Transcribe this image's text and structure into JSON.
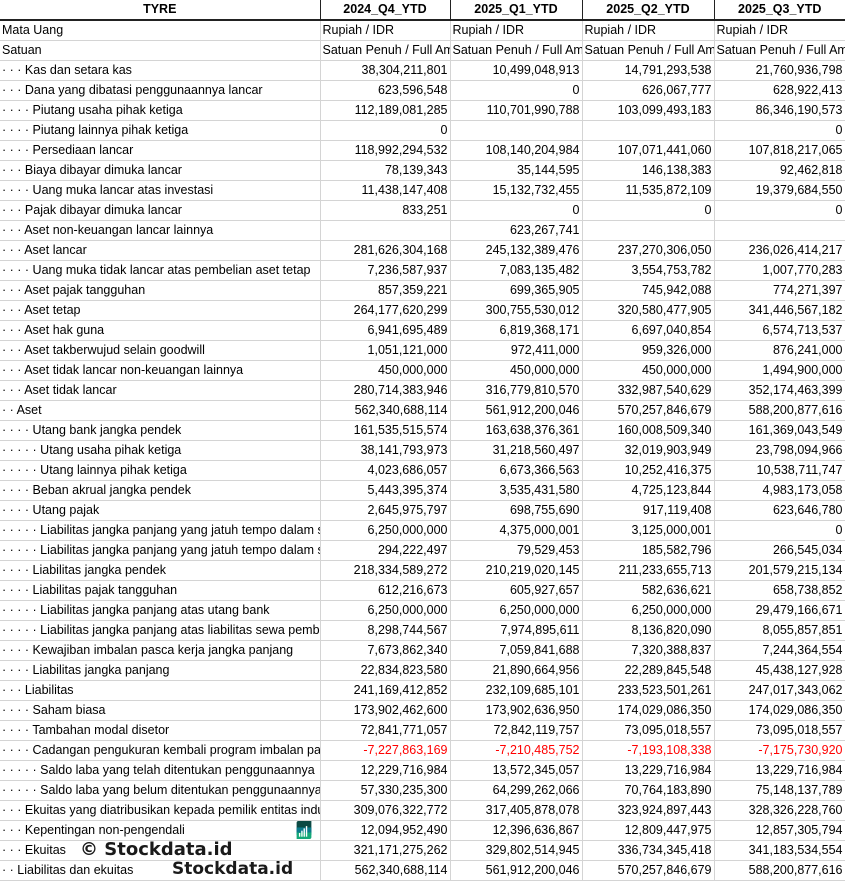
{
  "header": {
    "title": "TYRE",
    "columns": [
      "2024_Q4_YTD",
      "2025_Q1_YTD",
      "2025_Q2_YTD",
      "2025_Q3_YTD"
    ]
  },
  "meta_rows": [
    {
      "label": "Mata Uang",
      "values": [
        "Rupiah / IDR",
        "Rupiah / IDR",
        "Rupiah / IDR",
        "Rupiah / IDR"
      ]
    },
    {
      "label": "Satuan",
      "values": [
        "Satuan Penuh / Full Amount",
        "Satuan Penuh / Full Amount",
        "Satuan Penuh / Full Amount",
        "Satuan Penuh / Full Amount"
      ]
    }
  ],
  "rows": [
    {
      "label": "· · · Kas dan setara kas",
      "values": [
        "38,304,211,801",
        "10,499,048,913",
        "14,791,293,538",
        "21,760,936,798"
      ]
    },
    {
      "label": "· · · Dana yang dibatasi penggunaannya lancar",
      "values": [
        "623,596,548",
        "0",
        "626,067,777",
        "628,922,413"
      ]
    },
    {
      "label": "· · · · Piutang usaha pihak ketiga",
      "values": [
        "112,189,081,285",
        "110,701,990,788",
        "103,099,493,183",
        "86,346,190,573"
      ]
    },
    {
      "label": "· · · · Piutang lainnya pihak ketiga",
      "values": [
        "0",
        "",
        "",
        "0"
      ]
    },
    {
      "label": "· · · · Persediaan lancar",
      "values": [
        "118,992,294,532",
        "108,140,204,984",
        "107,071,441,060",
        "107,818,217,065"
      ]
    },
    {
      "label": "· · · Biaya dibayar dimuka lancar",
      "values": [
        "78,139,343",
        "35,144,595",
        "146,138,383",
        "92,462,818"
      ]
    },
    {
      "label": "· · · · Uang muka lancar atas investasi",
      "values": [
        "11,438,147,408",
        "15,132,732,455",
        "11,535,872,109",
        "19,379,684,550"
      ]
    },
    {
      "label": "· · · Pajak dibayar dimuka lancar",
      "values": [
        "833,251",
        "0",
        "0",
        "0"
      ]
    },
    {
      "label": "· · · Aset non-keuangan lancar lainnya",
      "values": [
        "",
        "623,267,741",
        "",
        ""
      ]
    },
    {
      "label": "· · · Aset lancar",
      "values": [
        "281,626,304,168",
        "245,132,389,476",
        "237,270,306,050",
        "236,026,414,217"
      ]
    },
    {
      "label": "· · · · Uang muka tidak lancar atas pembelian aset tetap",
      "values": [
        "7,236,587,937",
        "7,083,135,482",
        "3,554,753,782",
        "1,007,770,283"
      ]
    },
    {
      "label": "· · · Aset pajak tangguhan",
      "values": [
        "857,359,221",
        "699,365,905",
        "745,942,088",
        "774,271,397"
      ]
    },
    {
      "label": "· · · Aset tetap",
      "values": [
        "264,177,620,299",
        "300,755,530,012",
        "320,580,477,905",
        "341,446,567,182"
      ]
    },
    {
      "label": "· · · Aset hak guna",
      "values": [
        "6,941,695,489",
        "6,819,368,171",
        "6,697,040,854",
        "6,574,713,537"
      ]
    },
    {
      "label": "· · · Aset takberwujud selain goodwill",
      "values": [
        "1,051,121,000",
        "972,411,000",
        "959,326,000",
        "876,241,000"
      ]
    },
    {
      "label": "· · · Aset tidak lancar non-keuangan lainnya",
      "values": [
        "450,000,000",
        "450,000,000",
        "450,000,000",
        "1,494,900,000"
      ]
    },
    {
      "label": "· · · Aset tidak lancar",
      "values": [
        "280,714,383,946",
        "316,779,810,570",
        "332,987,540,629",
        "352,174,463,399"
      ]
    },
    {
      "label": "· · Aset",
      "values": [
        "562,340,688,114",
        "561,912,200,046",
        "570,257,846,679",
        "588,200,877,616"
      ]
    },
    {
      "label": "· · · · Utang bank jangka pendek",
      "values": [
        "161,535,515,574",
        "163,638,376,361",
        "160,008,509,340",
        "161,369,043,549"
      ]
    },
    {
      "label": "· · · · · Utang usaha pihak ketiga",
      "values": [
        "38,141,793,973",
        "31,218,560,497",
        "32,019,903,949",
        "23,798,094,966"
      ]
    },
    {
      "label": "· · · · · Utang lainnya pihak ketiga",
      "values": [
        "4,023,686,057",
        "6,673,366,563",
        "10,252,416,375",
        "10,538,711,747"
      ]
    },
    {
      "label": "· · · · Beban akrual jangka pendek",
      "values": [
        "5,443,395,374",
        "3,535,431,580",
        "4,725,123,844",
        "4,983,173,058"
      ]
    },
    {
      "label": "· · · · Utang pajak",
      "values": [
        "2,645,975,797",
        "698,755,690",
        "917,119,408",
        "623,646,780"
      ]
    },
    {
      "label": "· · · · · Liabilitas jangka panjang yang jatuh tempo dalam satu tahun",
      "values": [
        "6,250,000,000",
        "4,375,000,001",
        "3,125,000,001",
        "0"
      ]
    },
    {
      "label": "· · · · · Liabilitas jangka panjang yang jatuh tempo dalam satu tahun",
      "values": [
        "294,222,497",
        "79,529,453",
        "185,582,796",
        "266,545,034"
      ]
    },
    {
      "label": "· · · · Liabilitas jangka pendek",
      "values": [
        "218,334,589,272",
        "210,219,020,145",
        "211,233,655,713",
        "201,579,215,134"
      ]
    },
    {
      "label": "· · · · Liabilitas pajak tangguhan",
      "values": [
        "612,216,673",
        "605,927,657",
        "582,636,621",
        "658,738,852"
      ]
    },
    {
      "label": "· · · · · Liabilitas jangka panjang atas utang bank",
      "values": [
        "6,250,000,000",
        "6,250,000,000",
        "6,250,000,000",
        "29,479,166,671"
      ]
    },
    {
      "label": "· · · · · Liabilitas jangka panjang atas liabilitas sewa pembiayaan",
      "values": [
        "8,298,744,567",
        "7,974,895,611",
        "8,136,820,090",
        "8,055,857,851"
      ]
    },
    {
      "label": "· · · · Kewajiban imbalan pasca kerja jangka panjang",
      "values": [
        "7,673,862,340",
        "7,059,841,688",
        "7,320,388,837",
        "7,244,364,554"
      ]
    },
    {
      "label": "· · · · Liabilitas jangka panjang",
      "values": [
        "22,834,823,580",
        "21,890,664,956",
        "22,289,845,548",
        "45,438,127,928"
      ]
    },
    {
      "label": "· · · Liabilitas",
      "values": [
        "241,169,412,852",
        "232,109,685,101",
        "233,523,501,261",
        "247,017,343,062"
      ]
    },
    {
      "label": "· · · · Saham biasa",
      "values": [
        "173,902,462,600",
        "173,902,636,950",
        "174,029,086,350",
        "174,029,086,350"
      ]
    },
    {
      "label": "· · · · Tambahan modal disetor",
      "values": [
        "72,841,771,057",
        "72,842,119,757",
        "73,095,018,557",
        "73,095,018,557"
      ]
    },
    {
      "label": "· · · · Cadangan pengukuran kembali program imbalan pasti",
      "values": [
        "-7,227,863,169",
        "-7,210,485,752",
        "-7,193,108,338",
        "-7,175,730,920"
      ],
      "negative": true
    },
    {
      "label": "· · · · · Saldo laba yang telah ditentukan penggunaannya",
      "values": [
        "12,229,716,984",
        "13,572,345,057",
        "13,229,716,984",
        "13,229,716,984"
      ]
    },
    {
      "label": "· · · · · Saldo laba yang belum ditentukan penggunaannya",
      "values": [
        "57,330,235,300",
        "64,299,262,066",
        "70,764,183,890",
        "75,148,137,789"
      ]
    },
    {
      "label": "· · · Ekuitas yang diatribusikan kepada pemilik entitas induk",
      "values": [
        "309,076,322,772",
        "317,405,878,078",
        "323,924,897,443",
        "328,326,228,760"
      ]
    },
    {
      "label": "· · · Kepentingan non-pengendali",
      "values": [
        "12,094,952,490",
        "12,396,636,867",
        "12,809,447,975",
        "12,857,305,794"
      ]
    },
    {
      "label": "· · · Ekuitas",
      "values": [
        "321,171,275,262",
        "329,802,514,945",
        "336,734,345,418",
        "341,183,534,554"
      ]
    },
    {
      "label": "· · Liabilitas dan ekuitas",
      "values": [
        "562,340,688,114",
        "561,912,200,046",
        "570,257,846,679",
        "588,200,877,616"
      ]
    }
  ],
  "watermark": {
    "text": "© Stockdata.id",
    "logo_text": "Stockdata.id"
  },
  "colors": {
    "negative": "#ff0000",
    "grid": "#d4d4d4",
    "logo_dark": "#0b4a44",
    "logo_mid": "#0a7a8a",
    "logo_green": "#14a878"
  }
}
